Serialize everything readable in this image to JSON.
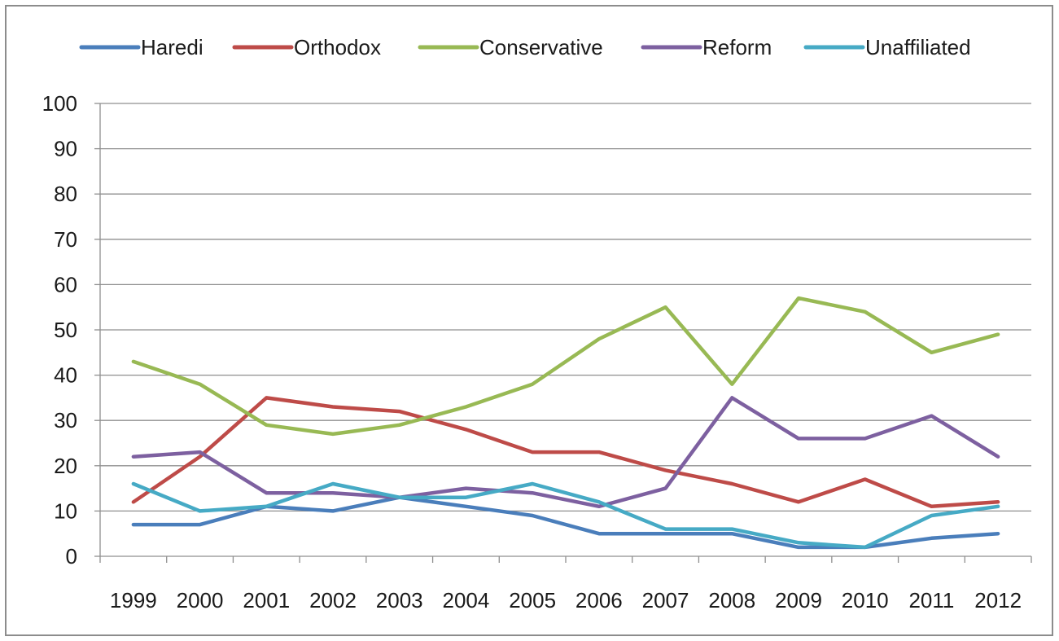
{
  "chart_data": {
    "type": "line",
    "title": "",
    "xlabel": "",
    "ylabel": "",
    "ylim": [
      0,
      100
    ],
    "yticks": [
      0,
      10,
      20,
      30,
      40,
      50,
      60,
      70,
      80,
      90,
      100
    ],
    "grid": "horizontal",
    "legend_position": "top",
    "x": [
      "1999",
      "2000",
      "2001",
      "2002",
      "2003",
      "2004",
      "2005",
      "2006",
      "2007",
      "2008",
      "2009",
      "2010",
      "2011",
      "2012"
    ],
    "series": [
      {
        "name": "Haredi",
        "color": "#4a7ebb",
        "values": [
          7,
          7,
          11,
          10,
          13,
          11,
          9,
          5,
          5,
          5,
          2,
          2,
          4,
          5
        ]
      },
      {
        "name": "Orthodox",
        "color": "#be4b48",
        "values": [
          12,
          22,
          35,
          33,
          32,
          28,
          23,
          23,
          19,
          16,
          12,
          17,
          11,
          12
        ]
      },
      {
        "name": "Conservative",
        "color": "#98b954",
        "values": [
          43,
          38,
          29,
          27,
          29,
          33,
          38,
          48,
          55,
          38,
          57,
          54,
          45,
          49
        ]
      },
      {
        "name": "Reform",
        "color": "#7d60a0",
        "values": [
          22,
          23,
          14,
          14,
          13,
          15,
          14,
          11,
          15,
          35,
          26,
          26,
          31,
          22
        ]
      },
      {
        "name": "Unaffiliated",
        "color": "#46aac5",
        "values": [
          16,
          10,
          11,
          16,
          13,
          13,
          16,
          12,
          6,
          6,
          3,
          2,
          9,
          11
        ]
      }
    ]
  }
}
